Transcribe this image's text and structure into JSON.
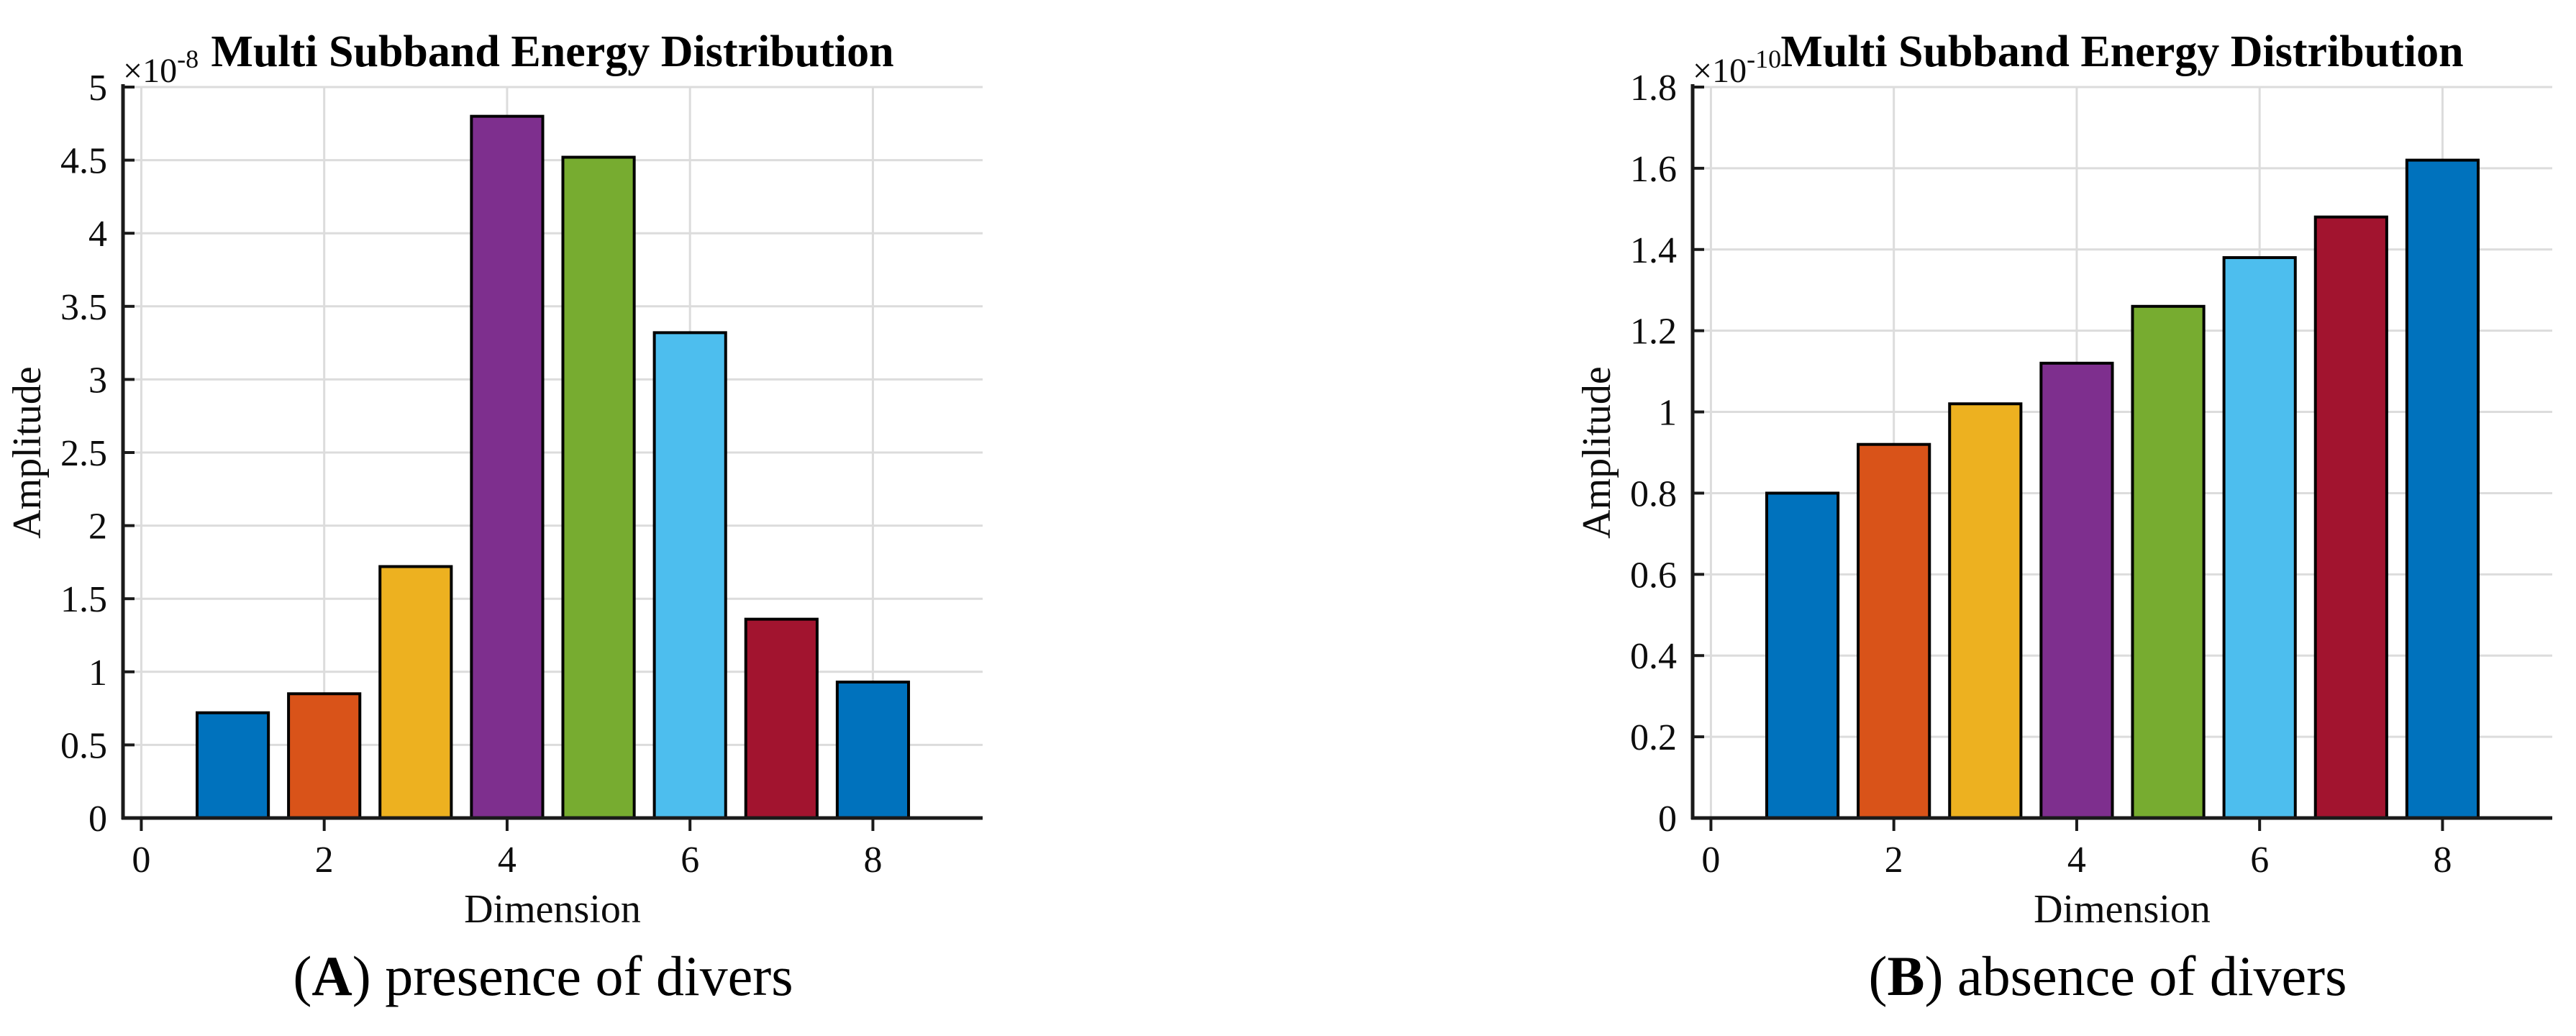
{
  "figure": {
    "background": "#ffffff",
    "panels": [
      {
        "caption": {
          "open": "(",
          "label": "A",
          "close": ") ",
          "text": "presence of divers"
        }
      },
      {
        "caption": {
          "open": "(",
          "label": "B",
          "close": ") ",
          "text": "absence of divers"
        }
      }
    ]
  },
  "chart_data": [
    {
      "type": "bar",
      "panel": "A",
      "title": "Multi Subband Energy Distribution",
      "xlabel": "Dimension",
      "ylabel": "Amplitude",
      "y_multiplier": "×10",
      "y_exponent": "-8",
      "values_scale": "1e-8",
      "categories": [
        1,
        2,
        3,
        4,
        5,
        6,
        7,
        8
      ],
      "values": [
        0.72,
        0.85,
        1.72,
        4.8,
        4.52,
        3.32,
        1.36,
        0.93
      ],
      "bar_colors": [
        "#0072BD",
        "#D95319",
        "#EDB120",
        "#7E2F8E",
        "#77AC30",
        "#4DBEEE",
        "#A2142F",
        "#0072BD"
      ],
      "bar_width": 0.78,
      "xticks": [
        "0",
        "2",
        "4",
        "6",
        "8"
      ],
      "xtick_values": [
        0,
        2,
        4,
        6,
        8
      ],
      "yticks": [
        "0",
        "0.5",
        "1",
        "1.5",
        "2",
        "2.5",
        "3",
        "3.5",
        "4",
        "4.5",
        "5"
      ],
      "ytick_values": [
        0,
        0.5,
        1,
        1.5,
        2,
        2.5,
        3,
        3.5,
        4,
        4.5,
        5
      ],
      "ylim": [
        0,
        5
      ],
      "xlim": [
        -0.2,
        9.2
      ],
      "grid": "on",
      "legend": "none"
    },
    {
      "type": "bar",
      "panel": "B",
      "title": "Multi Subband Energy Distribution",
      "xlabel": "Dimension",
      "ylabel": "Amplitude",
      "y_multiplier": "×10",
      "y_exponent": "-10",
      "values_scale": "1e-10",
      "categories": [
        1,
        2,
        3,
        4,
        5,
        6,
        7,
        8
      ],
      "values": [
        0.8,
        0.92,
        1.02,
        1.12,
        1.26,
        1.38,
        1.48,
        1.62
      ],
      "bar_colors": [
        "#0072BD",
        "#D95319",
        "#EDB120",
        "#7E2F8E",
        "#77AC30",
        "#4DBEEE",
        "#A2142F",
        "#0072BD"
      ],
      "bar_width": 0.78,
      "xticks": [
        "0",
        "2",
        "4",
        "6",
        "8"
      ],
      "xtick_values": [
        0,
        2,
        4,
        6,
        8
      ],
      "yticks": [
        "0",
        "0.2",
        "0.4",
        "0.6",
        "0.8",
        "1",
        "1.2",
        "1.4",
        "1.6",
        "1.8"
      ],
      "ytick_values": [
        0,
        0.2,
        0.4,
        0.6,
        0.8,
        1,
        1.2,
        1.4,
        1.6,
        1.8
      ],
      "ylim": [
        0,
        1.8
      ],
      "xlim": [
        -0.2,
        9.2
      ],
      "grid": "on",
      "legend": "none"
    }
  ],
  "colors": {
    "axis": "#1a1a1a",
    "grid": "#dcdcdc",
    "bar_edge": "#000000",
    "text": "#0d0d0d"
  }
}
